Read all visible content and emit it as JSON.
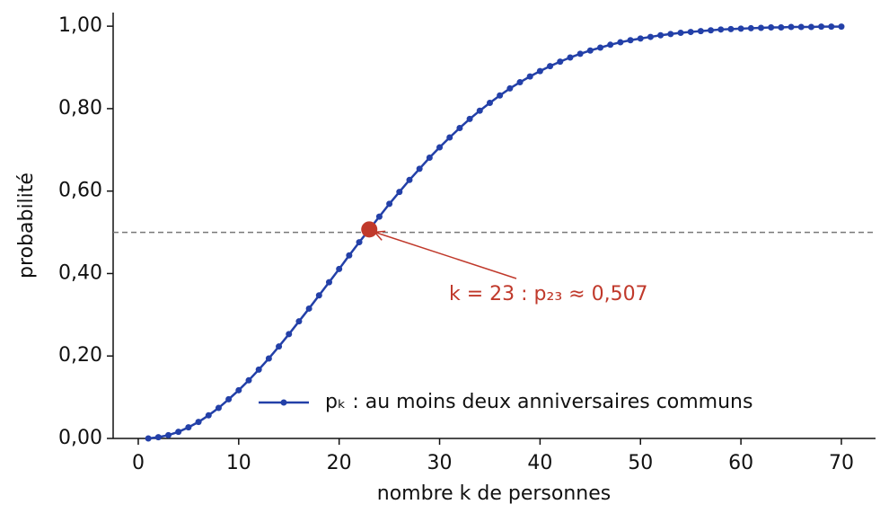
{
  "chart_data": {
    "type": "line",
    "xlabel": "nombre k de personnes",
    "ylabel": "probabilité",
    "x": [
      1,
      2,
      3,
      4,
      5,
      6,
      7,
      8,
      9,
      10,
      11,
      12,
      13,
      14,
      15,
      16,
      17,
      18,
      19,
      20,
      21,
      22,
      23,
      24,
      25,
      26,
      27,
      28,
      29,
      30,
      31,
      32,
      33,
      34,
      35,
      36,
      37,
      38,
      39,
      40,
      41,
      42,
      43,
      44,
      45,
      46,
      47,
      48,
      49,
      50,
      51,
      52,
      53,
      54,
      55,
      56,
      57,
      58,
      59,
      60,
      61,
      62,
      63,
      64,
      65,
      66,
      67,
      68,
      69,
      70
    ],
    "series": [
      {
        "name": "pₖ : au moins deux anniversaires communs",
        "color": "#2340a8",
        "values": [
          0,
          0.003,
          0.008,
          0.016,
          0.027,
          0.04,
          0.056,
          0.074,
          0.095,
          0.117,
          0.141,
          0.167,
          0.194,
          0.223,
          0.253,
          0.284,
          0.315,
          0.347,
          0.379,
          0.411,
          0.444,
          0.476,
          0.507,
          0.538,
          0.569,
          0.598,
          0.627,
          0.654,
          0.681,
          0.706,
          0.73,
          0.753,
          0.775,
          0.795,
          0.814,
          0.832,
          0.849,
          0.864,
          0.878,
          0.891,
          0.903,
          0.914,
          0.924,
          0.933,
          0.941,
          0.948,
          0.955,
          0.961,
          0.966,
          0.97,
          0.974,
          0.978,
          0.981,
          0.984,
          0.986,
          0.988,
          0.99,
          0.992,
          0.993,
          0.994,
          0.995,
          0.996,
          0.997,
          0.997,
          0.998,
          0.998,
          0.998,
          0.999,
          0.999,
          0.999
        ]
      }
    ],
    "xlim": [
      -2.5,
      73.4
    ],
    "ylim": [
      0,
      1.033
    ],
    "xticks": [
      0,
      10,
      20,
      30,
      40,
      50,
      60,
      70
    ],
    "yticks": [
      {
        "value": 0,
        "label": "0,00"
      },
      {
        "value": 0.2,
        "label": "0,20"
      },
      {
        "value": 0.4,
        "label": "0,40"
      },
      {
        "value": 0.6,
        "label": "0,60"
      },
      {
        "value": 0.8,
        "label": "0,80"
      },
      {
        "value": 1,
        "label": "1,00"
      }
    ],
    "hline": 0.5,
    "annotation": {
      "x": 23,
      "y": 0.507,
      "text": "k = 23 : p₂₃ ≈ 0,507",
      "color": "#c0392b"
    },
    "legend": "lower right"
  }
}
